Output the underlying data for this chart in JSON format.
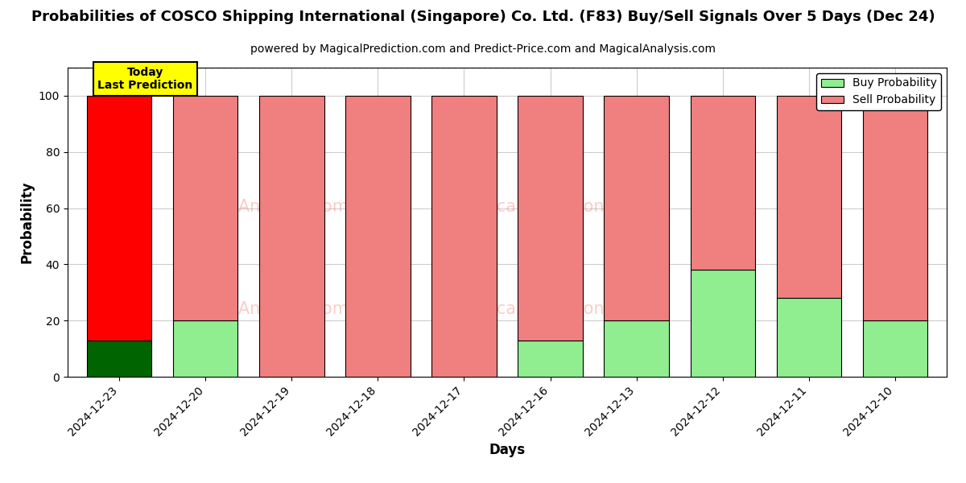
{
  "title": "Probabilities of COSCO Shipping International (Singapore) Co. Ltd. (F83) Buy/Sell Signals Over 5 Days (Dec 24)",
  "subtitle": "powered by MagicalPrediction.com and Predict-Price.com and MagicalAnalysis.com",
  "xlabel": "Days",
  "ylabel": "Probability",
  "categories": [
    "2024-12-23",
    "2024-12-20",
    "2024-12-19",
    "2024-12-18",
    "2024-12-17",
    "2024-12-16",
    "2024-12-13",
    "2024-12-12",
    "2024-12-11",
    "2024-12-10"
  ],
  "buy_values": [
    13,
    20,
    0,
    0,
    0,
    13,
    20,
    38,
    28,
    20
  ],
  "sell_values": [
    87,
    80,
    100,
    100,
    100,
    87,
    80,
    62,
    72,
    80
  ],
  "today_bar_index": 0,
  "today_buy_color": "#006400",
  "today_sell_color": "#FF0000",
  "buy_color": "#90EE90",
  "sell_color": "#F08080",
  "today_label_bg": "#FFFF00",
  "today_label_text": "Today\nLast Prediction",
  "legend_buy_label": "Buy Probability",
  "legend_sell_label": "Sell Probability",
  "ylim": [
    0,
    110
  ],
  "yticks": [
    0,
    20,
    40,
    60,
    80,
    100
  ],
  "dashed_line_y": 110,
  "background_color": "#ffffff",
  "grid_color": "#cccccc"
}
